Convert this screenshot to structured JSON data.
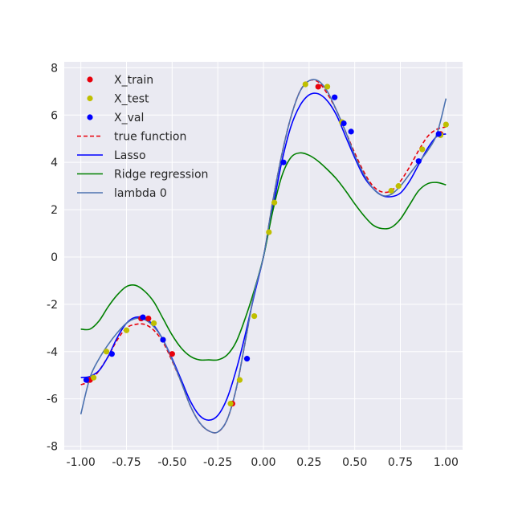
{
  "chart_data": {
    "type": "line",
    "title": "",
    "xlabel": "",
    "ylabel": "",
    "xlim": [
      -1.0,
      1.0
    ],
    "ylim": [
      -8,
      8
    ],
    "xticks": [
      -1.0,
      -0.75,
      -0.5,
      -0.25,
      0.0,
      0.25,
      0.5,
      0.75,
      1.0
    ],
    "xtick_labels": [
      "-1.00",
      "-0.75",
      "-0.50",
      "-0.25",
      "0.00",
      "0.25",
      "0.50",
      "0.75",
      "1.00"
    ],
    "yticks": [
      -8,
      -6,
      -4,
      -2,
      0,
      2,
      4,
      6,
      8
    ],
    "ytick_labels": [
      "-8",
      "-6",
      "-4",
      "-2",
      "0",
      "2",
      "4",
      "6",
      "8"
    ],
    "grid": true,
    "legend_position": "top-left",
    "background_color": "#eaeaf2",
    "scatter_series": [
      {
        "name": "X_train",
        "color": "#e8000b",
        "points": [
          [
            -0.95,
            -5.2
          ],
          [
            -0.67,
            -2.6
          ],
          [
            -0.63,
            -2.6
          ],
          [
            -0.5,
            -4.1
          ],
          [
            -0.17,
            -6.2
          ],
          [
            0.3,
            7.2
          ],
          [
            0.97,
            5.2
          ]
        ]
      },
      {
        "name": "X_test",
        "color": "#bfbf00",
        "points": [
          [
            -0.93,
            -5.1
          ],
          [
            -0.86,
            -4.0
          ],
          [
            -0.75,
            -3.1
          ],
          [
            -0.6,
            -2.8
          ],
          [
            -0.55,
            -3.5
          ],
          [
            -0.18,
            -6.2
          ],
          [
            -0.13,
            -5.2
          ],
          [
            -0.05,
            -2.5
          ],
          [
            0.03,
            1.05
          ],
          [
            0.06,
            2.3
          ],
          [
            0.23,
            7.3
          ],
          [
            0.35,
            7.2
          ],
          [
            0.43,
            5.7
          ],
          [
            0.7,
            2.8
          ],
          [
            0.74,
            3.0
          ],
          [
            0.87,
            4.55
          ],
          [
            0.97,
            5.15
          ],
          [
            1.0,
            5.6
          ]
        ]
      },
      {
        "name": "X_val",
        "color": "#0000ff",
        "points": [
          [
            -0.97,
            -5.2
          ],
          [
            -0.83,
            -4.1
          ],
          [
            -0.66,
            -2.55
          ],
          [
            -0.55,
            -3.5
          ],
          [
            -0.09,
            -4.3
          ],
          [
            0.11,
            4.0
          ],
          [
            0.39,
            6.75
          ],
          [
            0.44,
            5.65
          ],
          [
            0.48,
            5.3
          ],
          [
            0.85,
            4.05
          ],
          [
            0.96,
            5.2
          ]
        ]
      }
    ],
    "line_series": [
      {
        "name": "true function",
        "color": "#e8000b",
        "style": "dashed",
        "x": [
          -1.0,
          -0.95,
          -0.9,
          -0.85,
          -0.8,
          -0.75,
          -0.7,
          -0.65,
          -0.6,
          -0.55,
          -0.5,
          -0.45,
          -0.4,
          -0.35,
          -0.3,
          -0.25,
          -0.2,
          -0.15,
          -0.1,
          -0.05,
          0.0,
          0.05,
          0.1,
          0.15,
          0.2,
          0.25,
          0.3,
          0.35,
          0.4,
          0.45,
          0.5,
          0.55,
          0.6,
          0.65,
          0.7,
          0.75,
          0.8,
          0.85,
          0.9,
          0.95,
          1.0
        ],
        "y": [
          -5.4,
          -5.25,
          -4.8,
          -4.2,
          -3.5,
          -3.0,
          -2.85,
          -2.85,
          -3.1,
          -3.6,
          -4.4,
          -5.3,
          -6.3,
          -7.0,
          -7.35,
          -7.4,
          -6.9,
          -5.6,
          -3.6,
          -1.5,
          0.0,
          2.3,
          4.3,
          5.9,
          7.0,
          7.45,
          7.4,
          6.9,
          6.2,
          5.3,
          4.4,
          3.6,
          3.0,
          2.75,
          2.8,
          3.2,
          3.8,
          4.5,
          5.1,
          5.4,
          5.5
        ]
      },
      {
        "name": "Lasso",
        "color": "#0000ff",
        "style": "solid",
        "x": [
          -1.0,
          -0.95,
          -0.9,
          -0.85,
          -0.8,
          -0.75,
          -0.7,
          -0.65,
          -0.6,
          -0.55,
          -0.5,
          -0.45,
          -0.4,
          -0.35,
          -0.3,
          -0.25,
          -0.2,
          -0.15,
          -0.1,
          -0.05,
          0.0,
          0.05,
          0.1,
          0.15,
          0.2,
          0.25,
          0.3,
          0.35,
          0.4,
          0.45,
          0.5,
          0.55,
          0.6,
          0.65,
          0.7,
          0.75,
          0.8,
          0.85,
          0.9,
          0.95,
          1.0
        ],
        "y": [
          -5.1,
          -5.05,
          -4.8,
          -4.2,
          -3.4,
          -2.8,
          -2.55,
          -2.6,
          -2.9,
          -3.5,
          -4.3,
          -5.2,
          -6.1,
          -6.7,
          -6.9,
          -6.7,
          -6.0,
          -4.8,
          -3.3,
          -1.6,
          0.0,
          2.0,
          4.0,
          5.5,
          6.4,
          6.85,
          6.9,
          6.6,
          6.0,
          5.1,
          4.2,
          3.4,
          2.9,
          2.6,
          2.55,
          2.7,
          3.2,
          3.9,
          4.6,
          5.1,
          5.2
        ]
      },
      {
        "name": "Ridge regression",
        "color": "#008000",
        "style": "solid",
        "x": [
          -1.0,
          -0.95,
          -0.9,
          -0.85,
          -0.8,
          -0.75,
          -0.7,
          -0.65,
          -0.6,
          -0.55,
          -0.5,
          -0.45,
          -0.4,
          -0.35,
          -0.3,
          -0.25,
          -0.2,
          -0.15,
          -0.1,
          -0.05,
          0.0,
          0.05,
          0.1,
          0.15,
          0.2,
          0.25,
          0.3,
          0.35,
          0.4,
          0.45,
          0.5,
          0.55,
          0.6,
          0.65,
          0.7,
          0.75,
          0.8,
          0.85,
          0.9,
          0.95,
          1.0
        ],
        "y": [
          -3.05,
          -3.05,
          -2.7,
          -2.1,
          -1.6,
          -1.25,
          -1.2,
          -1.45,
          -1.9,
          -2.6,
          -3.3,
          -3.85,
          -4.2,
          -4.35,
          -4.35,
          -4.35,
          -4.15,
          -3.6,
          -2.6,
          -1.4,
          0.0,
          1.9,
          3.4,
          4.2,
          4.4,
          4.3,
          4.05,
          3.7,
          3.3,
          2.8,
          2.25,
          1.75,
          1.35,
          1.2,
          1.25,
          1.6,
          2.2,
          2.8,
          3.1,
          3.15,
          3.05
        ]
      },
      {
        "name": "lambda 0",
        "color": "#4c72b0",
        "style": "solid",
        "x": [
          -1.0,
          -0.95,
          -0.9,
          -0.85,
          -0.8,
          -0.75,
          -0.7,
          -0.65,
          -0.6,
          -0.55,
          -0.5,
          -0.45,
          -0.4,
          -0.35,
          -0.3,
          -0.25,
          -0.2,
          -0.15,
          -0.1,
          -0.05,
          0.0,
          0.05,
          0.1,
          0.15,
          0.2,
          0.25,
          0.3,
          0.35,
          0.4,
          0.45,
          0.5,
          0.55,
          0.6,
          0.65,
          0.7,
          0.75,
          0.8,
          0.85,
          0.9,
          0.95,
          1.0
        ],
        "y": [
          -6.65,
          -5.1,
          -4.3,
          -3.7,
          -3.2,
          -2.8,
          -2.6,
          -2.65,
          -2.95,
          -3.5,
          -4.35,
          -5.3,
          -6.3,
          -7.0,
          -7.35,
          -7.4,
          -6.9,
          -5.6,
          -3.6,
          -1.5,
          0.0,
          2.3,
          4.3,
          5.9,
          7.0,
          7.45,
          7.45,
          7.0,
          6.2,
          5.3,
          4.3,
          3.5,
          2.9,
          2.6,
          2.65,
          3.0,
          3.5,
          4.0,
          4.5,
          5.2,
          6.7
        ]
      }
    ]
  }
}
